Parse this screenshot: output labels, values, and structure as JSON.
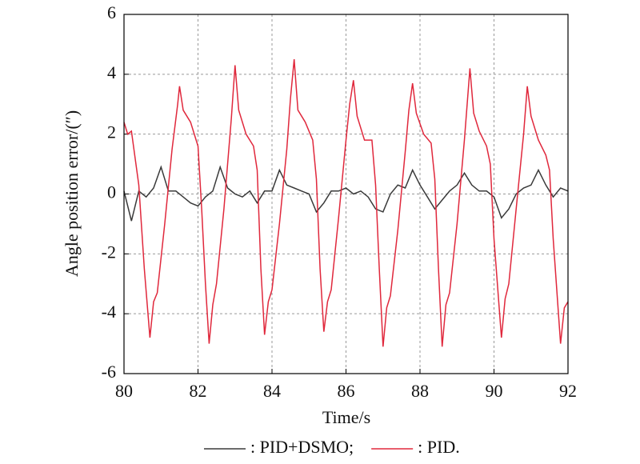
{
  "chart_data": {
    "type": "line",
    "xlabel": "Time/s",
    "ylabel": "Angle position error/(″)",
    "xlim": [
      80,
      92
    ],
    "xticks": [
      80,
      82,
      84,
      86,
      88,
      90,
      92
    ],
    "ylim": [
      -6,
      6
    ],
    "yticks": [
      -6,
      -4,
      -2,
      0,
      2,
      4,
      6
    ],
    "grid": true,
    "legend": "bottom",
    "series": [
      {
        "name": ": PID+DSMO;",
        "color": "#3a3a3a",
        "x": [
          80,
          80.2,
          80.4,
          80.6,
          80.8,
          81,
          81.2,
          81.4,
          81.6,
          81.8,
          82,
          82.2,
          82.4,
          82.6,
          82.8,
          83,
          83.2,
          83.4,
          83.6,
          83.8,
          84,
          84.2,
          84.4,
          84.6,
          84.8,
          85,
          85.2,
          85.4,
          85.6,
          85.8,
          86,
          86.2,
          86.4,
          86.6,
          86.8,
          87,
          87.2,
          87.4,
          87.6,
          87.8,
          88,
          88.2,
          88.4,
          88.6,
          88.8,
          89,
          89.2,
          89.4,
          89.6,
          89.8,
          90,
          90.2,
          90.4,
          90.6,
          90.8,
          91,
          91.2,
          91.4,
          91.6,
          91.8,
          92
        ],
        "values": [
          0.1,
          -0.9,
          0.1,
          -0.1,
          0.2,
          0.9,
          0.1,
          0.1,
          -0.1,
          -0.3,
          -0.4,
          -0.1,
          0.1,
          0.9,
          0.2,
          0,
          -0.1,
          0.1,
          -0.3,
          0.1,
          0.1,
          0.8,
          0.3,
          0.2,
          0.1,
          0,
          -0.6,
          -0.3,
          0.1,
          0.1,
          0.2,
          0,
          0.1,
          -0.1,
          -0.5,
          -0.6,
          0,
          0.3,
          0.2,
          0.8,
          0.3,
          -0.1,
          -0.5,
          -0.2,
          0.1,
          0.3,
          0.7,
          0.3,
          0.1,
          0.1,
          -0.1,
          -0.8,
          -0.5,
          0,
          0.2,
          0.3,
          0.8,
          0.3,
          -0.1,
          0.2,
          0.1
        ]
      },
      {
        "name": ": PID.",
        "color": "#e0283c",
        "x": [
          80,
          80.1,
          80.2,
          80.4,
          80.55,
          80.7,
          80.8,
          80.9,
          81.1,
          81.3,
          81.45,
          81.5,
          81.6,
          81.8,
          82,
          82.1,
          82.2,
          82.3,
          82.4,
          82.5,
          82.7,
          82.9,
          83,
          83.1,
          83.3,
          83.5,
          83.6,
          83.7,
          83.8,
          83.9,
          84,
          84.2,
          84.4,
          84.5,
          84.6,
          84.7,
          84.9,
          85.1,
          85.2,
          85.3,
          85.4,
          85.5,
          85.6,
          85.8,
          86,
          86.1,
          86.2,
          86.3,
          86.5,
          86.7,
          86.8,
          86.9,
          87,
          87.1,
          87.2,
          87.4,
          87.6,
          87.7,
          87.8,
          87.9,
          88.1,
          88.3,
          88.4,
          88.5,
          88.6,
          88.7,
          88.8,
          89,
          89.2,
          89.35,
          89.45,
          89.6,
          89.8,
          89.9,
          90,
          90.2,
          90.3,
          90.4,
          90.6,
          90.8,
          90.9,
          91,
          91.2,
          91.4,
          91.5,
          91.6,
          91.8,
          91.9,
          92
        ],
        "values": [
          2.4,
          2.0,
          2.1,
          0.3,
          -2.5,
          -4.8,
          -3.6,
          -3.3,
          -1.0,
          1.5,
          3.0,
          3.6,
          2.8,
          2.4,
          1.6,
          -0.5,
          -3.0,
          -5.0,
          -3.7,
          -3.0,
          -0.5,
          2.5,
          4.3,
          2.8,
          2.0,
          1.6,
          0.8,
          -2.5,
          -4.7,
          -3.6,
          -3.2,
          -1.0,
          1.5,
          3.2,
          4.5,
          2.8,
          2.4,
          1.8,
          0.5,
          -2.5,
          -4.6,
          -3.6,
          -3.2,
          -0.8,
          1.8,
          3.0,
          3.8,
          2.6,
          1.8,
          1.8,
          0.3,
          -2.5,
          -5.1,
          -3.8,
          -3.4,
          -1.2,
          1.4,
          2.8,
          3.7,
          2.7,
          2.0,
          1.7,
          0.5,
          -2.5,
          -5.1,
          -3.7,
          -3.3,
          -1.0,
          1.8,
          4.2,
          2.7,
          2.1,
          1.6,
          1.0,
          -1.5,
          -4.8,
          -3.5,
          -3.0,
          -0.5,
          2.0,
          3.6,
          2.6,
          1.8,
          1.3,
          0.8,
          -1.5,
          -5.0,
          -3.8,
          -3.6
        ]
      }
    ]
  }
}
